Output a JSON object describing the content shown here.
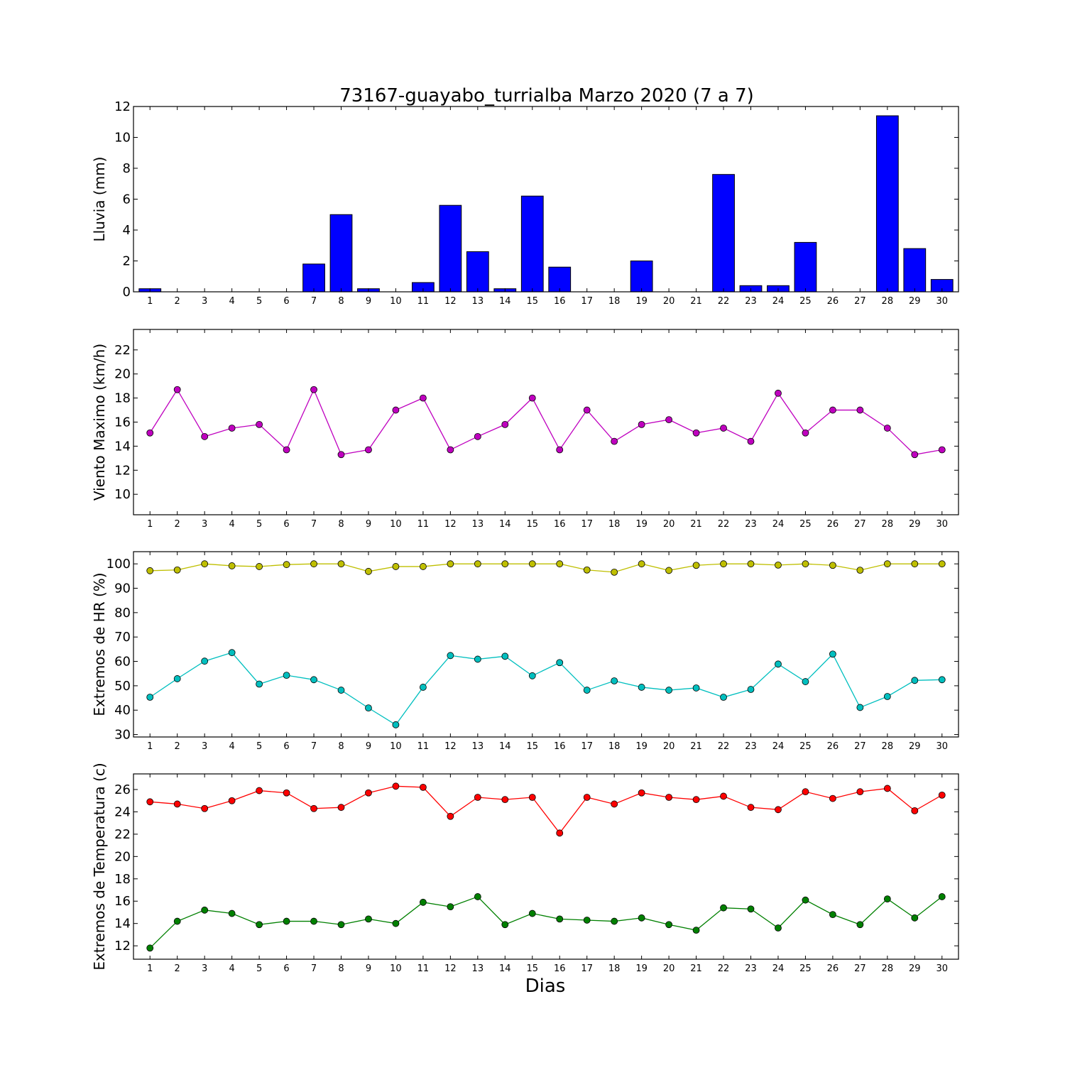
{
  "figure": {
    "title": "73167-guayabo_turrialba Marzo 2020  (7 a 7)",
    "xlabel": "Dias"
  },
  "chart_data": [
    {
      "type": "bar",
      "ylabel": "Lluvia (mm)",
      "ylim": [
        0,
        12
      ],
      "yticks": [
        0,
        2,
        4,
        6,
        8,
        10,
        12
      ],
      "categories": [
        "1",
        "2",
        "3",
        "4",
        "5",
        "6",
        "7",
        "8",
        "9",
        "10",
        "11",
        "12",
        "13",
        "14",
        "15",
        "16",
        "17",
        "18",
        "19",
        "20",
        "21",
        "22",
        "23",
        "24",
        "25",
        "26",
        "27",
        "28",
        "29",
        "30"
      ],
      "series": [
        {
          "color": "#0000ff",
          "values": [
            0.2,
            0,
            0,
            0,
            0,
            0,
            1.8,
            5.0,
            0.2,
            0,
            0.6,
            5.6,
            2.6,
            0.2,
            6.2,
            1.6,
            0,
            0,
            2.0,
            0,
            0,
            7.6,
            0.4,
            0.4,
            3.2,
            0,
            0,
            11.4,
            2.8,
            0.8
          ]
        }
      ],
      "grid": false
    },
    {
      "type": "line",
      "ylabel": "Viento Maximo (km/h)",
      "ylim": [
        8.3,
        23.7
      ],
      "yticks": [
        10,
        12,
        14,
        16,
        18,
        20,
        22
      ],
      "categories": [
        "1",
        "2",
        "3",
        "4",
        "5",
        "6",
        "7",
        "8",
        "9",
        "10",
        "11",
        "12",
        "13",
        "14",
        "15",
        "16",
        "17",
        "18",
        "19",
        "20",
        "21",
        "22",
        "23",
        "24",
        "25",
        "26",
        "27",
        "28",
        "29",
        "30"
      ],
      "series": [
        {
          "color": "#bf00bf",
          "values": [
            15.1,
            18.7,
            14.8,
            15.5,
            15.8,
            13.7,
            18.7,
            13.3,
            13.7,
            17.0,
            18.0,
            13.7,
            14.8,
            15.8,
            18.0,
            13.7,
            17.0,
            14.4,
            15.8,
            16.2,
            15.1,
            15.5,
            14.4,
            18.4,
            15.1,
            17.0,
            17.0,
            15.5,
            13.3,
            13.7
          ]
        }
      ],
      "grid": false
    },
    {
      "type": "line",
      "ylabel": "Extremos de HR (%)",
      "ylim": [
        29,
        105
      ],
      "yticks": [
        30,
        40,
        50,
        60,
        70,
        80,
        90,
        100
      ],
      "categories": [
        "1",
        "2",
        "3",
        "4",
        "5",
        "6",
        "7",
        "8",
        "9",
        "10",
        "11",
        "12",
        "13",
        "14",
        "15",
        "16",
        "17",
        "18",
        "19",
        "20",
        "21",
        "22",
        "23",
        "24",
        "25",
        "26",
        "27",
        "28",
        "29",
        "30"
      ],
      "series": [
        {
          "color": "#bfbf00",
          "values": [
            97.2,
            97.5,
            100,
            99.2,
            98.9,
            99.7,
            100,
            100,
            96.9,
            98.9,
            98.9,
            100,
            100,
            100,
            100,
            100,
            97.5,
            96.6,
            100,
            97.3,
            99.4,
            100,
            100,
            99.5,
            100,
            99.4,
            97.4,
            100,
            100,
            100
          ]
        },
        {
          "color": "#00bfbf",
          "values": [
            45.3,
            52.9,
            60.1,
            63.6,
            50.7,
            54.3,
            52.5,
            48.2,
            40.9,
            34.0,
            49.4,
            62.4,
            60.9,
            62.1,
            54.1,
            59.5,
            48.2,
            52.0,
            49.4,
            48.2,
            49.1,
            45.3,
            48.5,
            58.9,
            51.7,
            63.0,
            41.1,
            45.6,
            52.2,
            52.5
          ]
        }
      ],
      "grid": false
    },
    {
      "type": "line",
      "ylabel": "Extremos de Temperatura (c)",
      "ylim": [
        10.8,
        27.4
      ],
      "yticks": [
        12,
        14,
        16,
        18,
        20,
        22,
        24,
        26
      ],
      "categories": [
        "1",
        "2",
        "3",
        "4",
        "5",
        "6",
        "7",
        "8",
        "9",
        "10",
        "11",
        "12",
        "13",
        "14",
        "15",
        "16",
        "17",
        "18",
        "19",
        "20",
        "21",
        "22",
        "23",
        "24",
        "25",
        "26",
        "27",
        "28",
        "29",
        "30"
      ],
      "series": [
        {
          "color": "#ff0000",
          "values": [
            24.9,
            24.7,
            24.3,
            25.0,
            25.9,
            25.7,
            24.3,
            24.4,
            25.7,
            26.3,
            26.2,
            23.6,
            25.3,
            25.1,
            25.3,
            22.1,
            25.3,
            24.7,
            25.7,
            25.3,
            25.1,
            25.4,
            24.4,
            24.2,
            25.8,
            25.2,
            25.8,
            26.1,
            24.1,
            25.5
          ]
        },
        {
          "color": "#008000",
          "values": [
            11.8,
            14.2,
            15.2,
            14.9,
            13.9,
            14.2,
            14.2,
            13.9,
            14.4,
            14.0,
            15.9,
            15.5,
            16.4,
            13.9,
            14.9,
            14.4,
            14.3,
            14.2,
            14.5,
            13.9,
            13.4,
            15.4,
            15.3,
            13.6,
            16.1,
            14.8,
            13.9,
            16.2,
            14.5,
            16.4
          ]
        }
      ],
      "grid": false
    }
  ]
}
